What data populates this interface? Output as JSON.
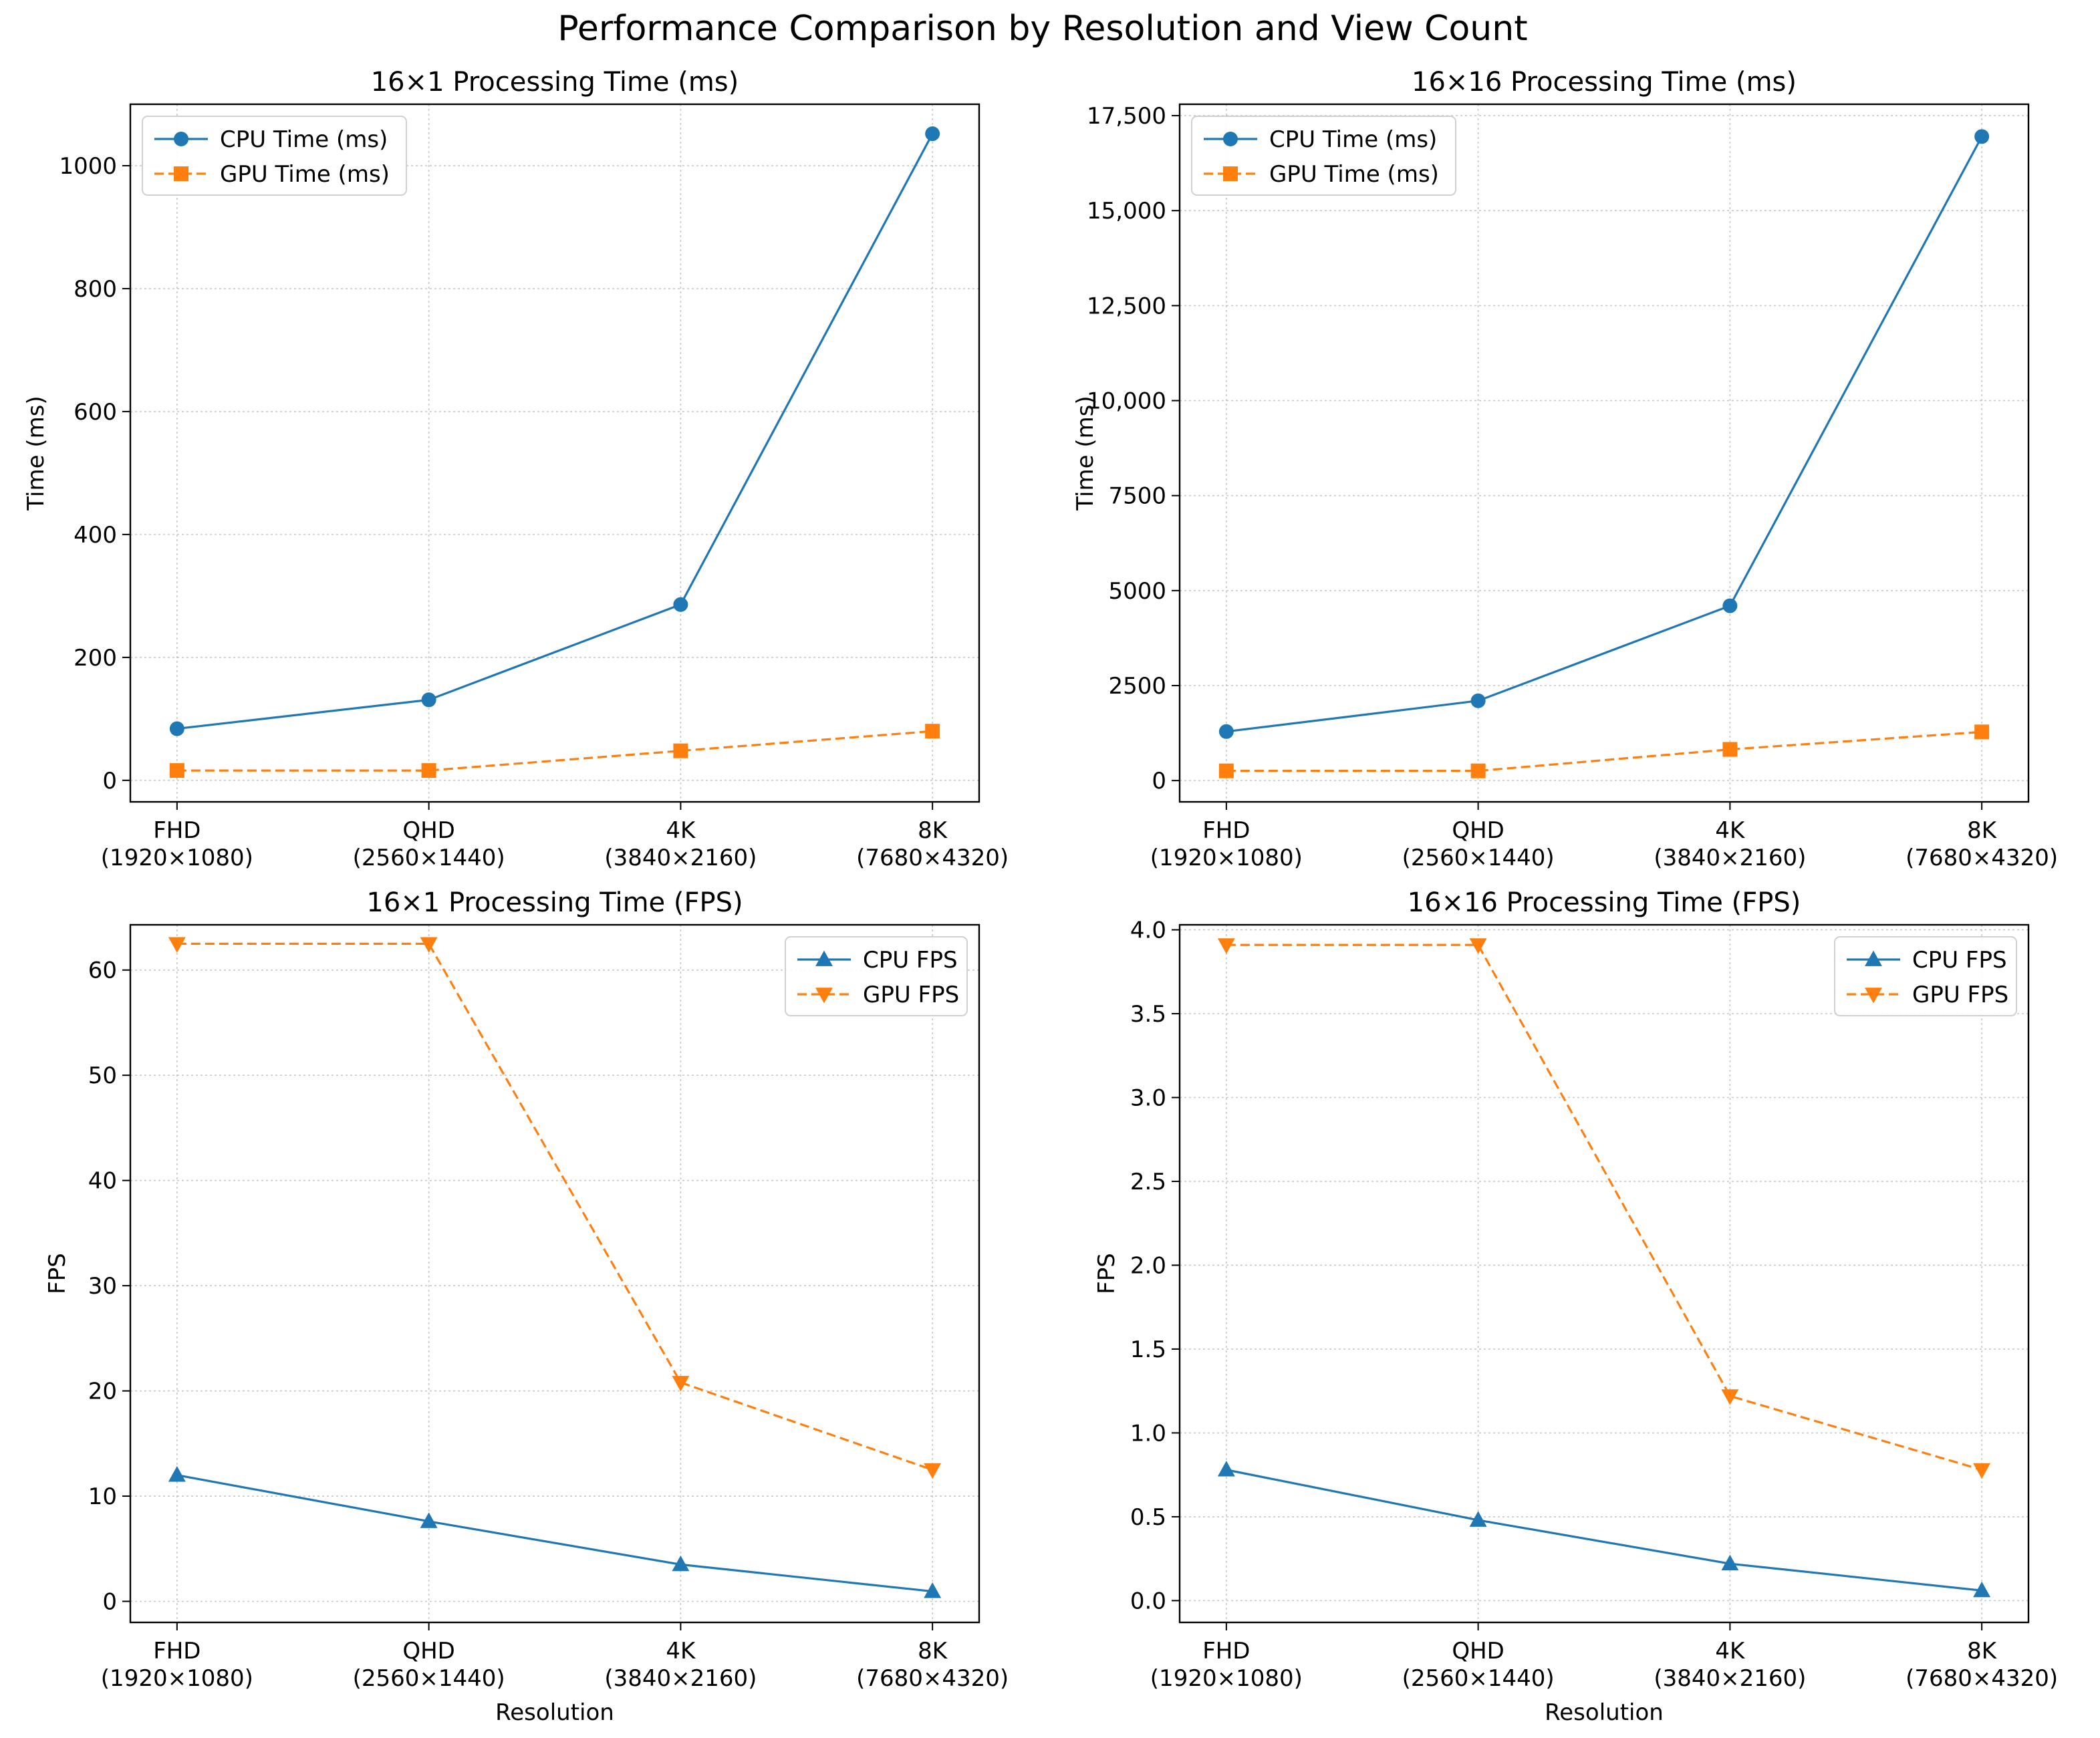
{
  "figure_title": "Performance Comparison by Resolution and View Count",
  "colors": {
    "cpu": "#1f77b4",
    "gpu": "#ff7f0e",
    "grid": "#b0b0b0",
    "axis": "#000000"
  },
  "chart_data": [
    {
      "type": "line",
      "title": "16×1 Processing Time (ms)",
      "xlabel": "",
      "ylabel": "Time (ms)",
      "categories": [
        "FHD\n(1920×1080)",
        "QHD\n(2560×1440)",
        "4K\n(3840×2160)",
        "8K\n(7680×4320)"
      ],
      "yticks": [
        0,
        200,
        400,
        600,
        800,
        1000
      ],
      "ytick_labels": [
        "0",
        "200",
        "400",
        "600",
        "800",
        "1000"
      ],
      "ylim": [
        -35,
        1100
      ],
      "legend": "top-left",
      "grid": true,
      "series": [
        {
          "name": "CPU Time (ms)",
          "marker": "circle",
          "dash": "solid",
          "color": "#1f77b4",
          "values": [
            84,
            131,
            286,
            1052
          ]
        },
        {
          "name": "GPU Time (ms)",
          "marker": "square",
          "dash": "dashed",
          "color": "#ff7f0e",
          "values": [
            16,
            16,
            48,
            80
          ]
        }
      ]
    },
    {
      "type": "line",
      "title": "16×16 Processing Time (ms)",
      "xlabel": "",
      "ylabel": "Time (ms)",
      "categories": [
        "FHD\n(1920×1080)",
        "QHD\n(2560×1440)",
        "4K\n(3840×2160)",
        "8K\n(7680×4320)"
      ],
      "yticks": [
        0,
        2500,
        5000,
        7500,
        10000,
        12500,
        15000,
        17500
      ],
      "ytick_labels": [
        "0",
        "2500",
        "5000",
        "7500",
        "10,000",
        "12,500",
        "15,000",
        "17,500"
      ],
      "ylim": [
        -560,
        17800
      ],
      "legend": "top-left",
      "grid": true,
      "series": [
        {
          "name": "CPU Time (ms)",
          "marker": "circle",
          "dash": "solid",
          "color": "#1f77b4",
          "values": [
            1290,
            2100,
            4600,
            16950
          ]
        },
        {
          "name": "GPU Time (ms)",
          "marker": "square",
          "dash": "dashed",
          "color": "#ff7f0e",
          "values": [
            255,
            255,
            820,
            1280
          ]
        }
      ]
    },
    {
      "type": "line",
      "title": "16×1 Processing Time (FPS)",
      "xlabel": "Resolution",
      "ylabel": "FPS",
      "categories": [
        "FHD\n(1920×1080)",
        "QHD\n(2560×1440)",
        "4K\n(3840×2160)",
        "8K\n(7680×4320)"
      ],
      "yticks": [
        0,
        10,
        20,
        30,
        40,
        50,
        60
      ],
      "ytick_labels": [
        "0",
        "10",
        "20",
        "30",
        "40",
        "50",
        "60"
      ],
      "ylim": [
        -2.0,
        64.3
      ],
      "legend": "top-right",
      "grid": true,
      "series": [
        {
          "name": "CPU FPS",
          "marker": "triangle-up",
          "dash": "solid",
          "color": "#1f77b4",
          "values": [
            12.0,
            7.6,
            3.5,
            0.95
          ]
        },
        {
          "name": "GPU FPS",
          "marker": "triangle-down",
          "dash": "dashed",
          "color": "#ff7f0e",
          "values": [
            62.5,
            62.5,
            20.8,
            12.5
          ]
        }
      ]
    },
    {
      "type": "line",
      "title": "16×16 Processing Time (FPS)",
      "xlabel": "Resolution",
      "ylabel": "FPS",
      "categories": [
        "FHD\n(1920×1080)",
        "QHD\n(2560×1440)",
        "4K\n(3840×2160)",
        "8K\n(7680×4320)"
      ],
      "yticks": [
        0.0,
        0.5,
        1.0,
        1.5,
        2.0,
        2.5,
        3.0,
        3.5,
        4.0
      ],
      "ytick_labels": [
        "0.0",
        "0.5",
        "1.0",
        "1.5",
        "2.0",
        "2.5",
        "3.0",
        "3.5",
        "4.0"
      ],
      "ylim": [
        -0.13,
        4.03
      ],
      "legend": "top-right",
      "grid": true,
      "series": [
        {
          "name": "CPU FPS",
          "marker": "triangle-up",
          "dash": "solid",
          "color": "#1f77b4",
          "values": [
            0.78,
            0.48,
            0.22,
            0.06
          ]
        },
        {
          "name": "GPU FPS",
          "marker": "triangle-down",
          "dash": "dashed",
          "color": "#ff7f0e",
          "values": [
            3.91,
            3.91,
            1.22,
            0.78
          ]
        }
      ]
    }
  ]
}
